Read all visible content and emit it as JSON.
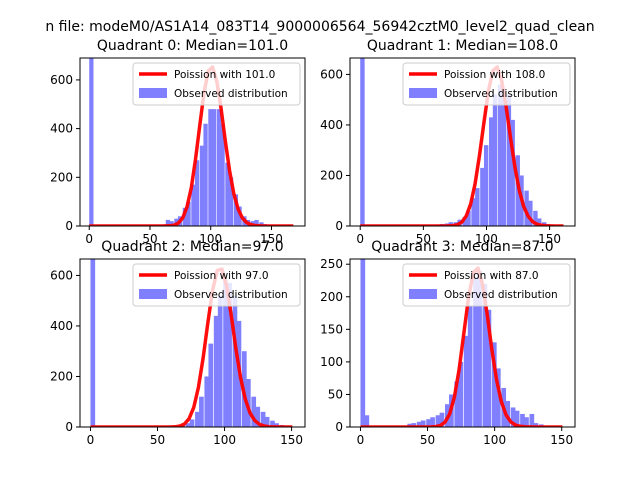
{
  "figure": {
    "suptitle": "n file: modeM0/AS1A14_083T14_9000006564_56942cztM0_level2_quad_clean"
  },
  "chart_data": [
    {
      "type": "bar",
      "title": "Quadrant 0: Median=101.0",
      "median": 101.0,
      "xlim": [
        -7.6,
        177.6
      ],
      "ylim": [
        0,
        690
      ],
      "xticks": [
        0,
        50,
        100,
        150
      ],
      "yticks": [
        0,
        200,
        400,
        600
      ],
      "bin_width": 3.5,
      "hist_bins": [
        [
          0,
          690
        ],
        [
          49,
          3
        ],
        [
          59,
          5
        ],
        [
          63,
          25
        ],
        [
          66,
          20
        ],
        [
          70,
          30
        ],
        [
          73,
          40
        ],
        [
          77,
          75
        ],
        [
          80,
          100
        ],
        [
          84,
          170
        ],
        [
          87,
          270
        ],
        [
          91,
          330
        ],
        [
          94,
          420
        ],
        [
          98,
          480
        ],
        [
          101,
          480
        ],
        [
          105,
          480
        ],
        [
          108,
          420
        ],
        [
          112,
          260
        ],
        [
          115,
          200
        ],
        [
          119,
          130
        ],
        [
          122,
          80
        ],
        [
          126,
          40
        ],
        [
          129,
          25
        ],
        [
          133,
          20
        ],
        [
          136,
          25
        ],
        [
          140,
          15
        ],
        [
          143,
          8
        ],
        [
          147,
          5
        ]
      ],
      "legend": [
        "Poission with 101.0",
        "Observed distribution"
      ],
      "colors": {
        "poisson": "#ff0000",
        "hist": "#8080ff"
      }
    },
    {
      "type": "bar",
      "title": "Quadrant 1: Median=108.0",
      "median": 108.0,
      "xlim": [
        -8.1,
        170.1
      ],
      "ylim": [
        0,
        665
      ],
      "xticks": [
        0,
        50,
        100,
        150
      ],
      "yticks": [
        0,
        200,
        400,
        600
      ],
      "bin_width": 3.5,
      "hist_bins": [
        [
          0,
          665
        ],
        [
          49,
          3
        ],
        [
          59,
          5
        ],
        [
          63,
          8
        ],
        [
          67,
          10
        ],
        [
          70,
          15
        ],
        [
          74,
          15
        ],
        [
          77,
          25
        ],
        [
          81,
          35
        ],
        [
          84,
          60
        ],
        [
          88,
          110
        ],
        [
          91,
          150
        ],
        [
          95,
          230
        ],
        [
          98,
          320
        ],
        [
          102,
          430
        ],
        [
          105,
          520
        ],
        [
          109,
          560
        ],
        [
          112,
          540
        ],
        [
          116,
          520
        ],
        [
          119,
          420
        ],
        [
          123,
          280
        ],
        [
          126,
          200
        ],
        [
          130,
          140
        ],
        [
          133,
          100
        ],
        [
          137,
          60
        ],
        [
          140,
          30
        ],
        [
          144,
          15
        ],
        [
          147,
          8
        ],
        [
          151,
          5
        ]
      ],
      "legend": [
        "Poission with 108.0",
        "Observed distribution"
      ],
      "colors": {
        "poisson": "#ff0000",
        "hist": "#8080ff"
      }
    },
    {
      "type": "bar",
      "title": "Quadrant 2: Median=97.0",
      "median": 97.0,
      "xlim": [
        -7.8,
        160.0
      ],
      "ylim": [
        0,
        665
      ],
      "xticks": [
        0,
        50,
        100,
        150
      ],
      "yticks": [
        0,
        200,
        400,
        600
      ],
      "bin_width": 3.5,
      "hist_bins": [
        [
          0,
          665
        ],
        [
          60,
          3
        ],
        [
          64,
          5
        ],
        [
          67,
          8
        ],
        [
          71,
          15
        ],
        [
          74,
          30
        ],
        [
          78,
          60
        ],
        [
          81,
          120
        ],
        [
          85,
          200
        ],
        [
          88,
          330
        ],
        [
          92,
          440
        ],
        [
          95,
          520
        ],
        [
          99,
          580
        ],
        [
          102,
          570
        ],
        [
          106,
          520
        ],
        [
          109,
          420
        ],
        [
          113,
          300
        ],
        [
          116,
          190
        ],
        [
          120,
          120
        ],
        [
          123,
          80
        ],
        [
          127,
          60
        ],
        [
          130,
          40
        ],
        [
          134,
          25
        ],
        [
          137,
          15
        ],
        [
          141,
          8
        ],
        [
          144,
          4
        ]
      ],
      "legend": [
        "Poission with 97.0",
        "Observed distribution"
      ],
      "colors": {
        "poisson": "#ff0000",
        "hist": "#8080ff"
      }
    },
    {
      "type": "bar",
      "title": "Quadrant 3: Median=87.0",
      "median": 87.0,
      "xlim": [
        -7.8,
        159.9
      ],
      "ylim": [
        0,
        258
      ],
      "xticks": [
        0,
        50,
        100,
        150
      ],
      "yticks": [
        0,
        50,
        100,
        150,
        200,
        250
      ],
      "bin_width": 3.5,
      "hist_bins": [
        [
          0,
          258
        ],
        [
          3,
          18
        ],
        [
          35,
          5
        ],
        [
          38,
          6
        ],
        [
          42,
          8
        ],
        [
          45,
          10
        ],
        [
          49,
          12
        ],
        [
          52,
          15
        ],
        [
          56,
          18
        ],
        [
          59,
          22
        ],
        [
          63,
          35
        ],
        [
          66,
          50
        ],
        [
          70,
          70
        ],
        [
          73,
          100
        ],
        [
          77,
          140
        ],
        [
          80,
          185
        ],
        [
          84,
          230
        ],
        [
          87,
          240
        ],
        [
          91,
          220
        ],
        [
          94,
          180
        ],
        [
          98,
          130
        ],
        [
          101,
          90
        ],
        [
          105,
          60
        ],
        [
          108,
          40
        ],
        [
          112,
          30
        ],
        [
          115,
          25
        ],
        [
          119,
          20
        ],
        [
          122,
          15
        ],
        [
          126,
          20
        ],
        [
          129,
          6
        ],
        [
          133,
          4
        ]
      ],
      "legend": [
        "Poission with 87.0",
        "Observed distribution"
      ],
      "colors": {
        "poisson": "#ff0000",
        "hist": "#8080ff"
      }
    }
  ]
}
